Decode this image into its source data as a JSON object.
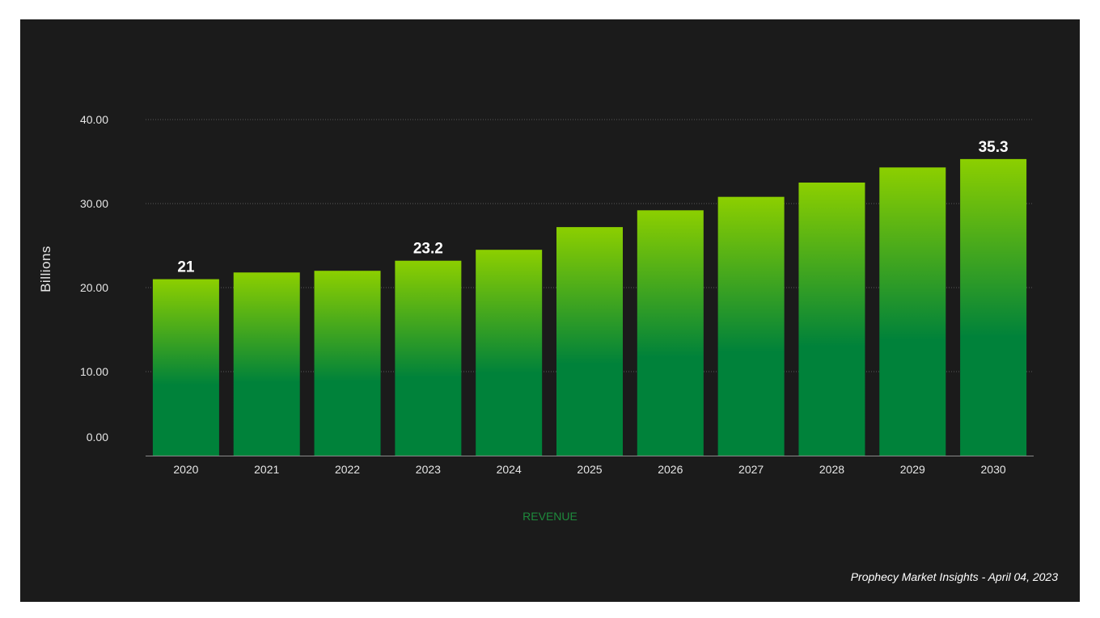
{
  "chart_data": {
    "type": "bar",
    "categories": [
      "2020",
      "2021",
      "2022",
      "2023",
      "2024",
      "2025",
      "2026",
      "2027",
      "2028",
      "2029",
      "2030"
    ],
    "values": [
      21,
      21.8,
      22,
      23.2,
      24.5,
      27.2,
      29.2,
      30.8,
      32.5,
      34.3,
      35.3
    ],
    "data_labels": [
      {
        "category": "2020",
        "text": "21"
      },
      {
        "category": "2023",
        "text": "23.2"
      },
      {
        "category": "2030",
        "text": "35.3"
      }
    ],
    "yticks": [
      "0.00",
      "10.00",
      "20.00",
      "30.00",
      "40.00"
    ],
    "ylim": [
      0,
      40
    ],
    "ylabel": "Billions",
    "xlabel": "REVENUE",
    "grid": true,
    "colors": {
      "background": "#1b1b1b",
      "bar_top": "#8ccf00",
      "bar_bottom": "#00823a",
      "xlabel": "#1e8a3c",
      "text": "#e6e6e6"
    }
  },
  "source_note": "Prophecy Market Insights - April 04, 2023"
}
